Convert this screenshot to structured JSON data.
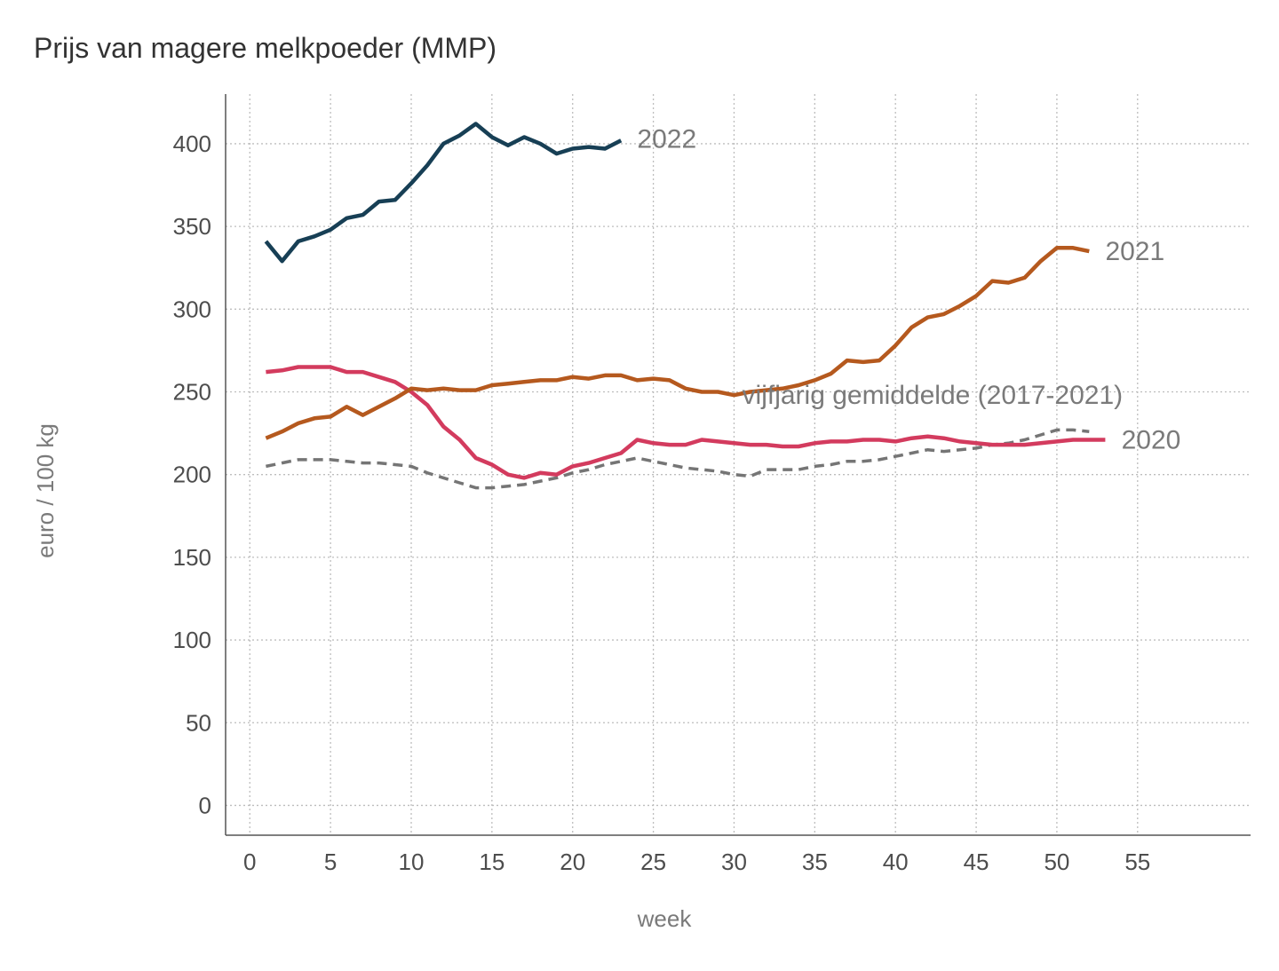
{
  "chart_data": {
    "type": "line",
    "title": "Prijs van magere melkpoeder (MMP)",
    "xlabel": "week",
    "ylabel": "euro / 100 kg",
    "xlim": [
      -1.5,
      62
    ],
    "ylim": [
      -18,
      430
    ],
    "xticks": [
      0,
      5,
      10,
      15,
      20,
      25,
      30,
      35,
      40,
      45,
      50,
      55
    ],
    "yticks": [
      0,
      50,
      100,
      150,
      200,
      250,
      300,
      350,
      400
    ],
    "grid": true,
    "series": [
      {
        "name": "vijfjarig gemiddelde (2017-2021)",
        "color": "#757575",
        "dashed": true,
        "label_anchor": "start",
        "label_at": [
          30.5,
          248
        ],
        "x": [
          1,
          2,
          3,
          4,
          5,
          6,
          7,
          8,
          9,
          10,
          11,
          12,
          13,
          14,
          15,
          16,
          17,
          18,
          19,
          20,
          21,
          22,
          23,
          24,
          25,
          26,
          27,
          28,
          29,
          30,
          31,
          32,
          33,
          34,
          35,
          36,
          37,
          38,
          39,
          40,
          41,
          42,
          43,
          44,
          45,
          46,
          47,
          48,
          49,
          50,
          51,
          52
        ],
        "values": [
          205,
          207,
          209,
          209,
          209,
          208,
          207,
          207,
          206,
          205,
          201,
          198,
          195,
          192,
          192,
          193,
          194,
          196,
          198,
          201,
          203,
          206,
          208,
          210,
          208,
          206,
          204,
          203,
          202,
          200,
          199,
          203,
          203,
          203,
          205,
          206,
          208,
          208,
          209,
          211,
          213,
          215,
          214,
          215,
          216,
          218,
          219,
          221,
          224,
          227,
          227,
          226
        ]
      },
      {
        "name": "2020",
        "color": "#d33b5e",
        "dashed": false,
        "label_anchor": "start",
        "label_at": [
          54,
          221
        ],
        "x": [
          1,
          2,
          3,
          4,
          5,
          6,
          7,
          8,
          9,
          10,
          11,
          12,
          13,
          14,
          15,
          16,
          17,
          18,
          19,
          20,
          21,
          22,
          23,
          24,
          25,
          26,
          27,
          28,
          29,
          30,
          31,
          32,
          33,
          34,
          35,
          36,
          37,
          38,
          39,
          40,
          41,
          42,
          43,
          44,
          45,
          46,
          47,
          48,
          49,
          50,
          51,
          52,
          53
        ],
        "values": [
          262,
          263,
          265,
          265,
          265,
          262,
          262,
          259,
          256,
          250,
          242,
          229,
          221,
          210,
          206,
          200,
          198,
          201,
          200,
          205,
          207,
          210,
          213,
          221,
          219,
          218,
          218,
          221,
          220,
          219,
          218,
          218,
          217,
          217,
          219,
          220,
          220,
          221,
          221,
          220,
          222,
          223,
          222,
          220,
          219,
          218,
          218,
          218,
          219,
          220,
          221,
          221,
          221
        ]
      },
      {
        "name": "2021",
        "color": "#b5591e",
        "dashed": false,
        "label_anchor": "start",
        "label_at": [
          53,
          335
        ],
        "x": [
          1,
          2,
          3,
          4,
          5,
          6,
          7,
          8,
          9,
          10,
          11,
          12,
          13,
          14,
          15,
          16,
          17,
          18,
          19,
          20,
          21,
          22,
          23,
          24,
          25,
          26,
          27,
          28,
          29,
          30,
          31,
          32,
          33,
          34,
          35,
          36,
          37,
          38,
          39,
          40,
          41,
          42,
          43,
          44,
          45,
          46,
          47,
          48,
          49,
          50,
          51,
          52
        ],
        "values": [
          222,
          226,
          231,
          234,
          235,
          241,
          236,
          241,
          246,
          252,
          251,
          252,
          251,
          251,
          254,
          255,
          256,
          257,
          257,
          259,
          258,
          260,
          260,
          257,
          258,
          257,
          252,
          250,
          250,
          248,
          250,
          251,
          252,
          254,
          257,
          261,
          269,
          268,
          269,
          278,
          289,
          295,
          297,
          302,
          308,
          317,
          316,
          319,
          329,
          337,
          337,
          335
        ]
      },
      {
        "name": "2022",
        "color": "#173f55",
        "dashed": false,
        "label_anchor": "start",
        "label_at": [
          24,
          403
        ],
        "x": [
          1,
          2,
          3,
          4,
          5,
          6,
          7,
          8,
          9,
          10,
          11,
          12,
          13,
          14,
          15,
          16,
          17,
          18,
          19,
          20,
          21,
          22,
          23
        ],
        "values": [
          341,
          329,
          341,
          344,
          348,
          355,
          357,
          365,
          366,
          376,
          387,
          400,
          405,
          412,
          404,
          399,
          404,
          400,
          394,
          397,
          398,
          397,
          402
        ]
      }
    ]
  }
}
